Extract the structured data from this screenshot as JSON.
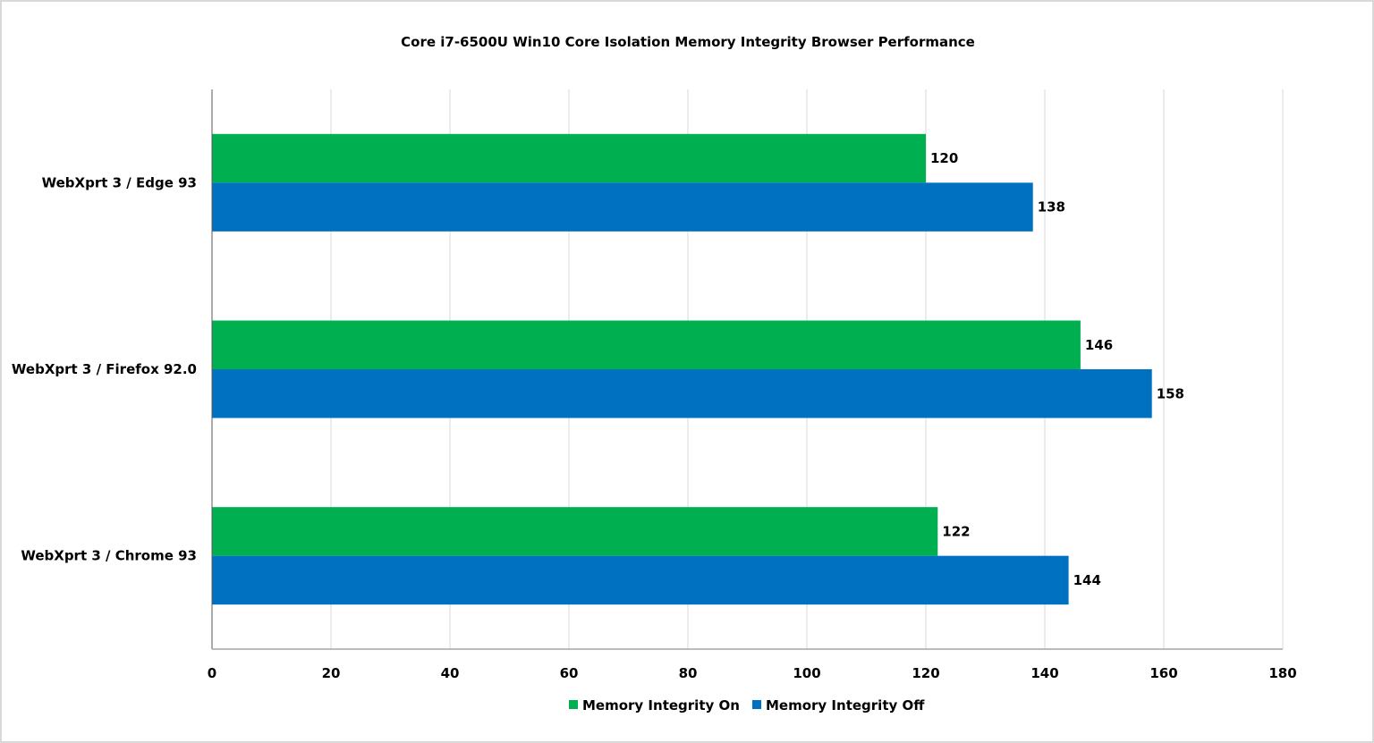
{
  "chart_data": {
    "type": "bar",
    "orientation": "horizontal",
    "title": "Core i7-6500U Win10 Core Isolation Memory Integrity Browser Performance",
    "categories": [
      "WebXprt 3 / Edge 93",
      "WebXprt 3 / Firefox 92.0",
      "WebXprt 3 / Chrome 93"
    ],
    "series": [
      {
        "name": "Memory Integrity On",
        "color": "#00b050",
        "values": [
          120,
          146,
          122
        ]
      },
      {
        "name": "Memory Integrity Off",
        "color": "#0070c0",
        "values": [
          138,
          158,
          144
        ]
      }
    ],
    "xlim": [
      0,
      180
    ],
    "xticks": [
      0,
      20,
      40,
      60,
      80,
      100,
      120,
      140,
      160,
      180
    ],
    "xlabel": "",
    "ylabel": "",
    "grid": true,
    "data_labels": true,
    "legend": "bottom"
  }
}
